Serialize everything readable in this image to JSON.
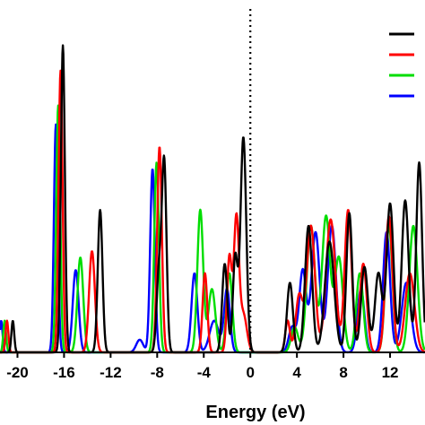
{
  "chart_data": {
    "type": "line",
    "title": "",
    "xlabel": "Energy (eV)",
    "ylabel": "",
    "xlim": [
      -21.5,
      15
    ],
    "ylim": [
      0,
      1.0
    ],
    "xticks": [
      -20,
      -16,
      -12,
      -8,
      -4,
      0,
      4,
      8,
      12
    ],
    "xtick_labels": [
      "-20",
      "-16",
      "-12",
      "-8",
      "-4",
      "0",
      "4",
      "8",
      "12"
    ],
    "fermi_level": 0,
    "grid": false,
    "legend": {
      "placement": "top-right",
      "entries": [
        {
          "color": "#000000",
          "label": ""
        },
        {
          "color": "#ff0000",
          "label": ""
        },
        {
          "color": "#00dd00",
          "label": ""
        },
        {
          "color": "#0000ff",
          "label": ""
        }
      ]
    },
    "series": [
      {
        "color": "#000000",
        "peaks": [
          [
            -20.4,
            0.1,
            0.12
          ],
          [
            -16.1,
            0.97,
            0.17
          ],
          [
            -12.9,
            0.45,
            0.2
          ],
          [
            -7.4,
            0.6,
            0.2
          ],
          [
            -7.85,
            0.25,
            0.2
          ],
          [
            -2.2,
            0.28,
            0.22
          ],
          [
            -1.3,
            0.3,
            0.2
          ],
          [
            -0.6,
            0.68,
            0.25
          ],
          [
            3.4,
            0.22,
            0.25
          ],
          [
            5.0,
            0.4,
            0.3
          ],
          [
            6.8,
            0.35,
            0.4
          ],
          [
            8.5,
            0.44,
            0.25
          ],
          [
            9.8,
            0.27,
            0.3
          ],
          [
            11.0,
            0.25,
            0.3
          ],
          [
            12.0,
            0.47,
            0.3
          ],
          [
            13.3,
            0.48,
            0.3
          ],
          [
            14.5,
            0.6,
            0.25
          ]
        ]
      },
      {
        "color": "#ff0000",
        "peaks": [
          [
            -20.9,
            0.1,
            0.12
          ],
          [
            -16.3,
            0.89,
            0.17
          ],
          [
            -13.6,
            0.32,
            0.25
          ],
          [
            -7.8,
            0.65,
            0.2
          ],
          [
            -3.9,
            0.25,
            0.2
          ],
          [
            -1.8,
            0.3,
            0.2
          ],
          [
            -1.2,
            0.42,
            0.22
          ],
          [
            -0.6,
            0.12,
            0.3
          ],
          [
            3.2,
            0.1,
            0.2
          ],
          [
            4.2,
            0.18,
            0.3
          ],
          [
            5.2,
            0.4,
            0.35
          ],
          [
            6.9,
            0.42,
            0.4
          ],
          [
            8.4,
            0.45,
            0.3
          ],
          [
            9.7,
            0.28,
            0.3
          ],
          [
            11.9,
            0.43,
            0.3
          ],
          [
            13.7,
            0.25,
            0.4
          ]
        ]
      },
      {
        "color": "#00dd00",
        "peaks": [
          [
            -21.1,
            0.1,
            0.12
          ],
          [
            -16.5,
            0.78,
            0.17
          ],
          [
            -14.6,
            0.3,
            0.25
          ],
          [
            -8.05,
            0.6,
            0.2
          ],
          [
            -4.3,
            0.45,
            0.25
          ],
          [
            -3.3,
            0.2,
            0.3
          ],
          [
            -1.8,
            0.25,
            0.25
          ],
          [
            3.8,
            0.08,
            0.3
          ],
          [
            5.2,
            0.4,
            0.35
          ],
          [
            6.5,
            0.43,
            0.35
          ],
          [
            7.6,
            0.3,
            0.35
          ],
          [
            9.4,
            0.25,
            0.3
          ],
          [
            11.9,
            0.4,
            0.3
          ],
          [
            14.0,
            0.4,
            0.35
          ]
        ]
      },
      {
        "color": "#0000ff",
        "peaks": [
          [
            -21.4,
            0.1,
            0.12
          ],
          [
            -16.7,
            0.72,
            0.17
          ],
          [
            -15.0,
            0.26,
            0.25
          ],
          [
            -8.4,
            0.58,
            0.2
          ],
          [
            -9.5,
            0.04,
            0.3
          ],
          [
            -4.8,
            0.25,
            0.25
          ],
          [
            -3.1,
            0.1,
            0.4
          ],
          [
            -2.0,
            0.2,
            0.25
          ],
          [
            3.6,
            0.08,
            0.3
          ],
          [
            4.5,
            0.26,
            0.3
          ],
          [
            5.6,
            0.38,
            0.35
          ],
          [
            7.0,
            0.4,
            0.35
          ],
          [
            9.5,
            0.2,
            0.3
          ],
          [
            11.7,
            0.38,
            0.3
          ],
          [
            13.4,
            0.22,
            0.4
          ]
        ]
      }
    ]
  }
}
